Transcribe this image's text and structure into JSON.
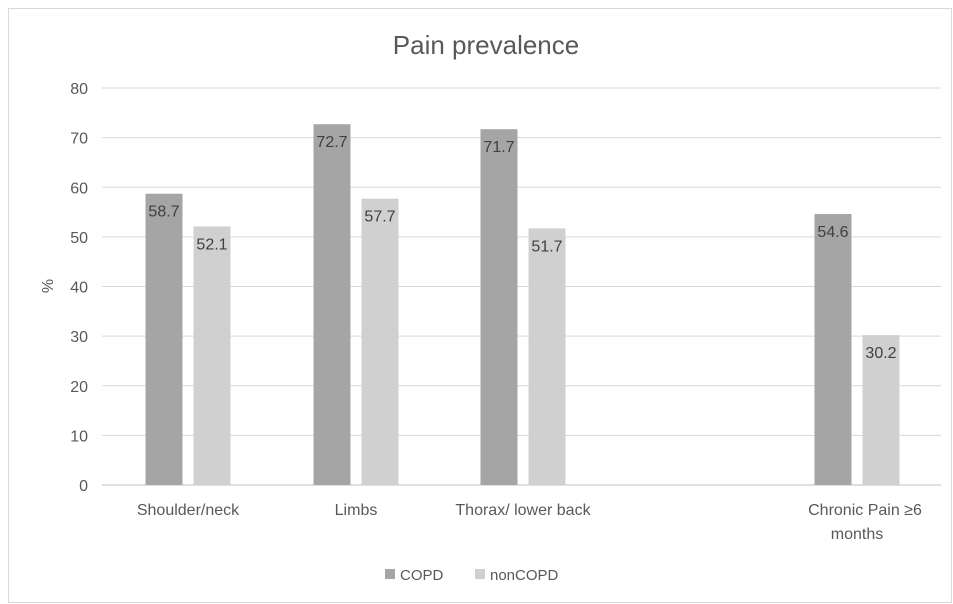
{
  "chart_data": {
    "type": "bar",
    "title": "Pain prevalence",
    "ylabel": "%",
    "xlabel": "",
    "ylim": [
      0,
      80
    ],
    "yticks": [
      0,
      10,
      20,
      30,
      40,
      50,
      60,
      70,
      80
    ],
    "grid": true,
    "legend_position": "bottom",
    "categories": [
      "Shoulder/neck",
      "Limbs",
      "Thorax/ lower back",
      "Chronic Pain ≥6 months"
    ],
    "series": [
      {
        "name": "COPD",
        "color": "#a5a5a5",
        "values": [
          58.7,
          72.7,
          71.7,
          54.6
        ],
        "labels": [
          "58.7",
          "72.7",
          "71.7",
          "54.6"
        ]
      },
      {
        "name": "nonCOPD",
        "color": "#d0d0d0",
        "values": [
          52.1,
          57.7,
          51.7,
          30.2
        ],
        "labels": [
          "52.1",
          "57.7",
          "51.7",
          "30.2"
        ]
      }
    ]
  }
}
